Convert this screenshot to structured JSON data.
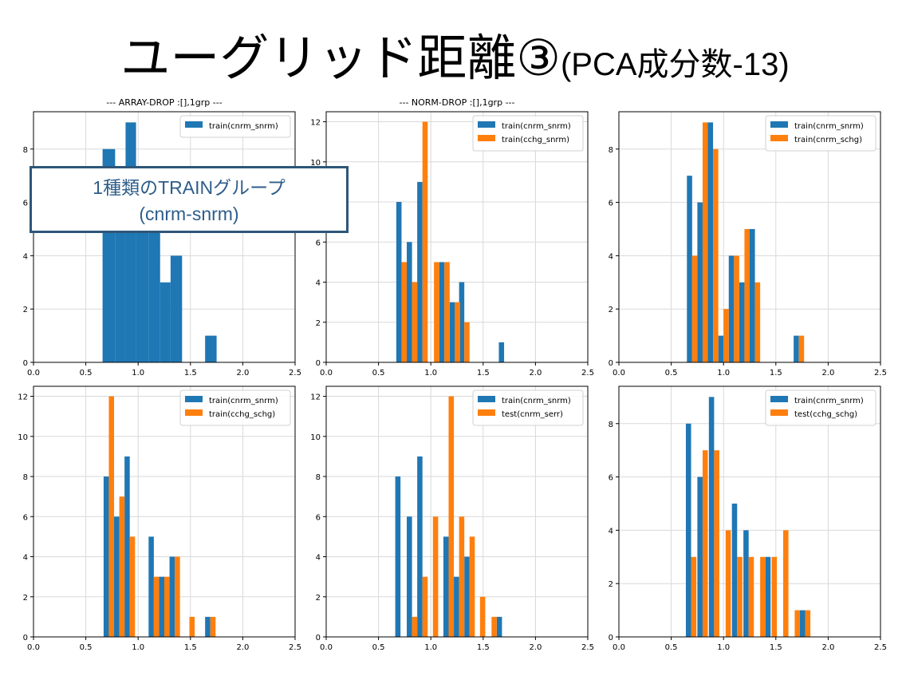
{
  "title": {
    "main": "ユーグリッド距離③",
    "sub": "(PCA成分数-13)"
  },
  "callout": {
    "line1": "1種類のTRAINグループ",
    "line2": "(cnrm-snrm)"
  },
  "colors": {
    "blue": "#1f77b4",
    "orange": "#ff7f0e",
    "grid": "#d9d9d9",
    "callout_border": "#2e5678",
    "callout_text": "#2e5d8a"
  },
  "chart_data": [
    {
      "type": "bar",
      "title": "--- ARRAY-DROP :[],1grp ---",
      "xlim": [
        0,
        2.5
      ],
      "ylim": [
        0,
        9.4
      ],
      "xticks": [
        "0.0",
        "0.5",
        "1.0",
        "1.5",
        "2.0",
        "2.5"
      ],
      "yticks": [
        0,
        2,
        4,
        6,
        8
      ],
      "grid": true,
      "legend_position": "top-right",
      "series": [
        {
          "name": "train(cnrm_snrm)",
          "color": "blue",
          "bins": [
            [
              0.66,
              0.78,
              8
            ],
            [
              0.78,
              0.88,
              6
            ],
            [
              0.88,
              0.98,
              9
            ],
            [
              0.98,
              1.1,
              5
            ],
            [
              1.1,
              1.21,
              5
            ],
            [
              1.21,
              1.31,
              3
            ],
            [
              1.31,
              1.42,
              4
            ],
            [
              1.64,
              1.75,
              1
            ]
          ]
        }
      ]
    },
    {
      "type": "bar",
      "title": "--- NORM-DROP :[],1grp ---",
      "xlim": [
        0,
        2.5
      ],
      "ylim": [
        0,
        12.5
      ],
      "xticks": [
        "0.0",
        "0.5",
        "1.0",
        "1.5",
        "2.0",
        "2.5"
      ],
      "yticks": [
        0,
        2,
        4,
        6,
        8,
        10,
        12
      ],
      "grid": true,
      "legend_position": "top-right",
      "series": [
        {
          "name": "train(cnrm_snrm)",
          "color": "blue",
          "bins": [
            [
              0.67,
              0.72,
              8
            ],
            [
              0.77,
              0.82,
              6
            ],
            [
              0.87,
              0.92,
              9
            ],
            [
              1.08,
              1.13,
              5
            ],
            [
              1.18,
              1.23,
              3
            ],
            [
              1.27,
              1.32,
              4
            ],
            [
              1.65,
              1.7,
              1
            ]
          ]
        },
        {
          "name": "train(cchg_snrm)",
          "color": "orange",
          "bins": [
            [
              0.72,
              0.77,
              5
            ],
            [
              0.82,
              0.87,
              4
            ],
            [
              0.92,
              0.97,
              12
            ],
            [
              1.03,
              1.08,
              5
            ],
            [
              1.13,
              1.18,
              5
            ],
            [
              1.23,
              1.28,
              3
            ],
            [
              1.32,
              1.37,
              2
            ]
          ]
        }
      ]
    },
    {
      "type": "bar",
      "title": "",
      "xlim": [
        0,
        2.5
      ],
      "ylim": [
        0,
        9.4
      ],
      "xticks": [
        "0.0",
        "0.5",
        "1.0",
        "1.5",
        "2.0",
        "2.5"
      ],
      "yticks": [
        0,
        2,
        4,
        6,
        8
      ],
      "grid": true,
      "legend_position": "top-right",
      "series": [
        {
          "name": "train(cnrm_snrm)",
          "color": "blue",
          "bins": [
            [
              0.65,
              0.7,
              7
            ],
            [
              0.75,
              0.8,
              6
            ],
            [
              0.85,
              0.9,
              9
            ],
            [
              0.95,
              1.0,
              1
            ],
            [
              1.05,
              1.1,
              4
            ],
            [
              1.15,
              1.2,
              3
            ],
            [
              1.25,
              1.3,
              5
            ],
            [
              1.67,
              1.72,
              1
            ]
          ]
        },
        {
          "name": "train(cnrm_schg)",
          "color": "orange",
          "bins": [
            [
              0.7,
              0.75,
              4
            ],
            [
              0.8,
              0.85,
              9
            ],
            [
              0.9,
              0.95,
              8
            ],
            [
              1.0,
              1.05,
              2
            ],
            [
              1.1,
              1.15,
              4
            ],
            [
              1.2,
              1.25,
              5
            ],
            [
              1.3,
              1.35,
              3
            ],
            [
              1.72,
              1.77,
              1
            ]
          ]
        }
      ]
    },
    {
      "type": "bar",
      "title": "",
      "xlim": [
        0,
        2.5
      ],
      "ylim": [
        0,
        12.5
      ],
      "xticks": [
        "0.0",
        "0.5",
        "1.0",
        "1.5",
        "2.0",
        "2.5"
      ],
      "yticks": [
        0,
        2,
        4,
        6,
        8,
        10,
        12
      ],
      "grid": true,
      "legend_position": "top-right",
      "series": [
        {
          "name": "train(cnrm_snrm)",
          "color": "blue",
          "bins": [
            [
              0.67,
              0.72,
              8
            ],
            [
              0.77,
              0.82,
              6
            ],
            [
              0.87,
              0.92,
              9
            ],
            [
              1.1,
              1.15,
              5
            ],
            [
              1.2,
              1.25,
              3
            ],
            [
              1.3,
              1.35,
              4
            ],
            [
              1.64,
              1.69,
              1
            ]
          ]
        },
        {
          "name": "train(cchg_schg)",
          "color": "orange",
          "bins": [
            [
              0.72,
              0.77,
              12
            ],
            [
              0.82,
              0.87,
              7
            ],
            [
              0.92,
              0.97,
              5
            ],
            [
              1.15,
              1.2,
              3
            ],
            [
              1.25,
              1.3,
              3
            ],
            [
              1.35,
              1.4,
              4
            ],
            [
              1.49,
              1.54,
              1
            ],
            [
              1.69,
              1.74,
              1
            ]
          ]
        }
      ]
    },
    {
      "type": "bar",
      "title": "",
      "xlim": [
        0,
        2.5
      ],
      "ylim": [
        0,
        12.5
      ],
      "xticks": [
        "0.0",
        "0.5",
        "1.0",
        "1.5",
        "2.0",
        "2.5"
      ],
      "yticks": [
        0,
        2,
        4,
        6,
        8,
        10,
        12
      ],
      "grid": true,
      "legend_position": "top-right",
      "series": [
        {
          "name": "train(cnrm_snrm)",
          "color": "blue",
          "bins": [
            [
              0.66,
              0.71,
              8
            ],
            [
              0.77,
              0.82,
              6
            ],
            [
              0.87,
              0.92,
              9
            ],
            [
              1.12,
              1.17,
              5
            ],
            [
              1.22,
              1.27,
              3
            ],
            [
              1.32,
              1.37,
              4
            ],
            [
              1.63,
              1.68,
              1
            ]
          ]
        },
        {
          "name": "test(cnrm_serr)",
          "color": "orange",
          "bins": [
            [
              0.82,
              0.87,
              1
            ],
            [
              0.92,
              0.97,
              3
            ],
            [
              1.02,
              1.07,
              6
            ],
            [
              1.17,
              1.22,
              12
            ],
            [
              1.27,
              1.32,
              6
            ],
            [
              1.37,
              1.42,
              5
            ],
            [
              1.47,
              1.52,
              2
            ],
            [
              1.58,
              1.63,
              1
            ]
          ]
        }
      ]
    },
    {
      "type": "bar",
      "title": "",
      "xlim": [
        0,
        2.5
      ],
      "ylim": [
        0,
        9.4
      ],
      "xticks": [
        "0.0",
        "0.5",
        "1.0",
        "1.5",
        "2.0",
        "2.5"
      ],
      "yticks": [
        0,
        2,
        4,
        6,
        8
      ],
      "grid": true,
      "legend_position": "top-right",
      "series": [
        {
          "name": "train(cnrm_snrm)",
          "color": "blue",
          "bins": [
            [
              0.64,
              0.69,
              8
            ],
            [
              0.75,
              0.8,
              6
            ],
            [
              0.86,
              0.91,
              9
            ],
            [
              1.08,
              1.13,
              5
            ],
            [
              1.19,
              1.24,
              4
            ],
            [
              1.4,
              1.45,
              3
            ],
            [
              1.73,
              1.78,
              1
            ]
          ]
        },
        {
          "name": "test(cchg_schg)",
          "color": "orange",
          "bins": [
            [
              0.69,
              0.74,
              3
            ],
            [
              0.8,
              0.85,
              7
            ],
            [
              0.91,
              0.96,
              7
            ],
            [
              1.02,
              1.07,
              4
            ],
            [
              1.13,
              1.18,
              3
            ],
            [
              1.24,
              1.29,
              3
            ],
            [
              1.35,
              1.4,
              3
            ],
            [
              1.46,
              1.51,
              3
            ],
            [
              1.57,
              1.62,
              4
            ],
            [
              1.68,
              1.73,
              1
            ],
            [
              1.78,
              1.83,
              1
            ]
          ]
        }
      ]
    }
  ]
}
